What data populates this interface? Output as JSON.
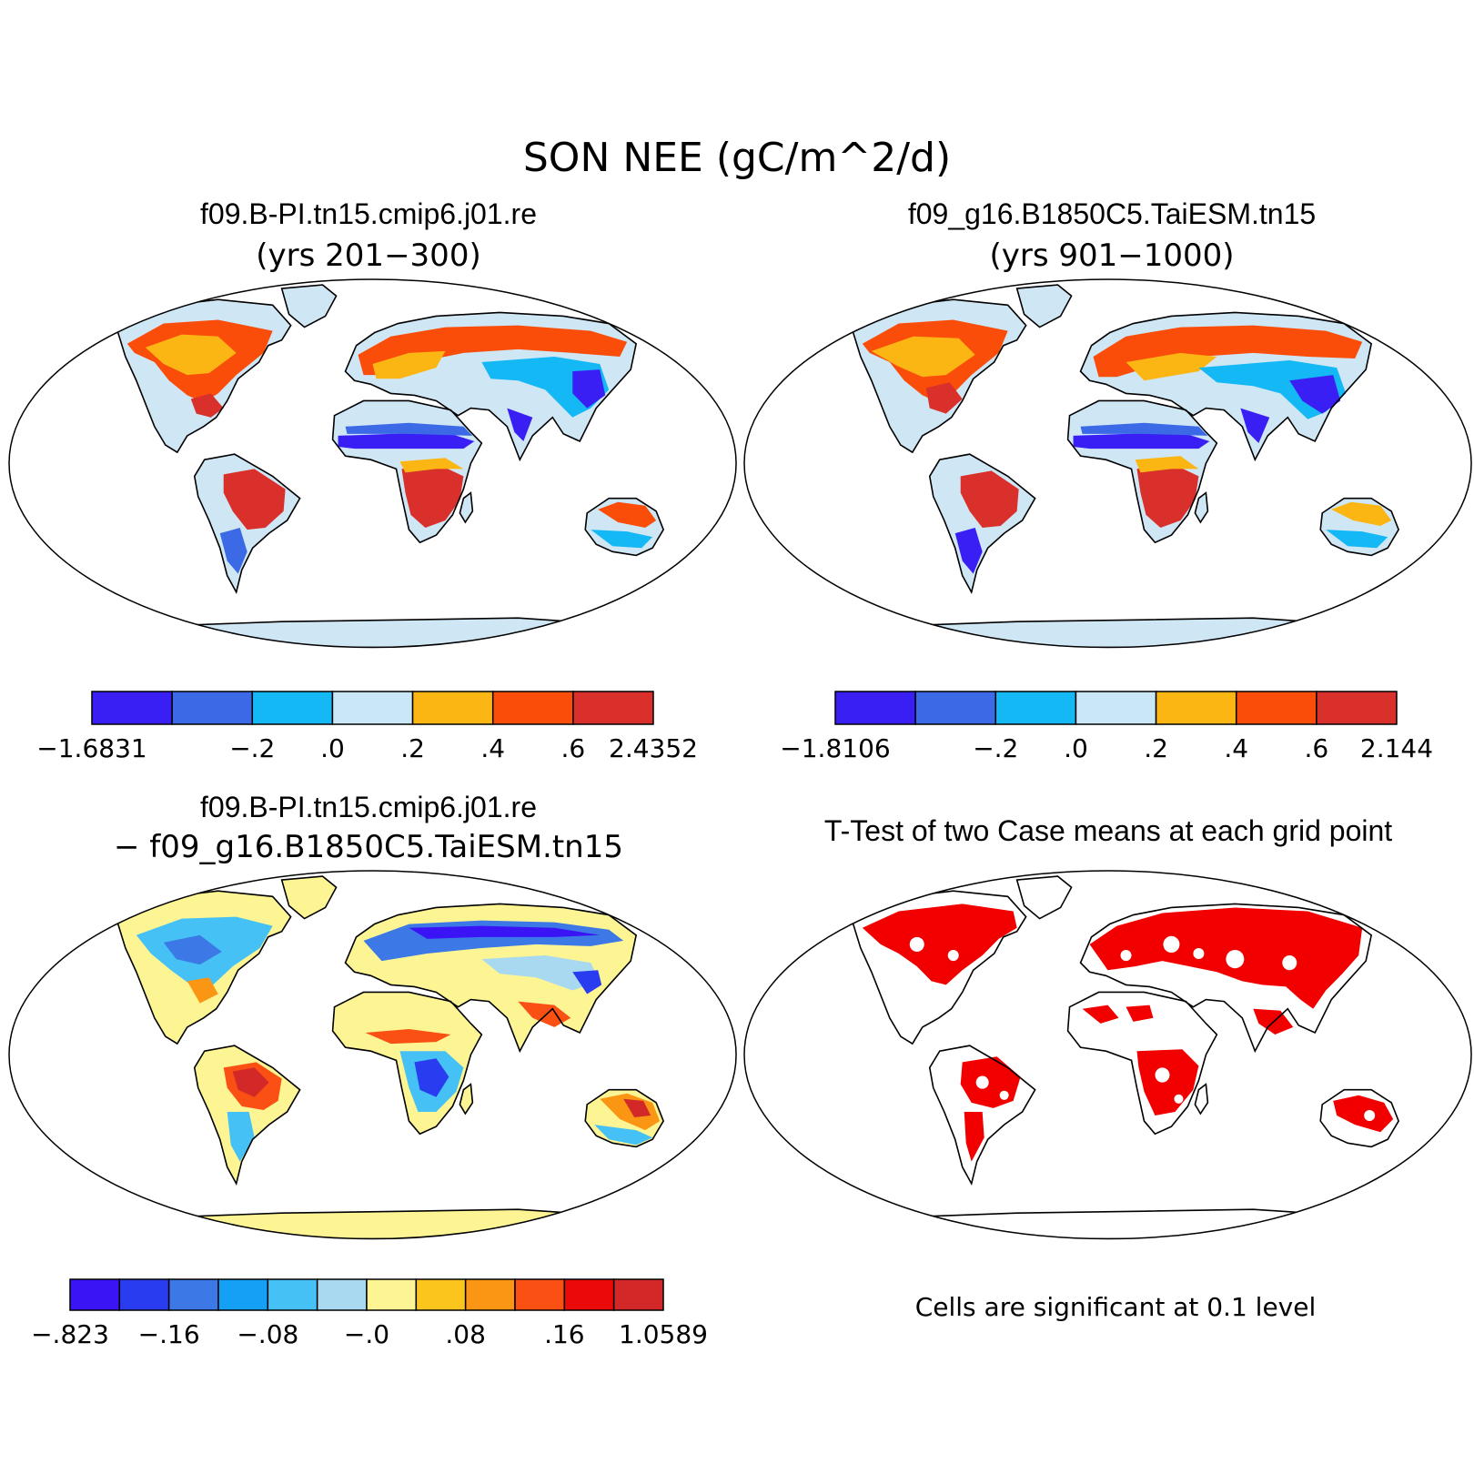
{
  "figure": {
    "title": "SON NEE (gC/m^2/d)"
  },
  "panels": [
    {
      "id": "case1",
      "title": "f09.B-PI.tn15.cmip6.j01.re",
      "subtitle": "(yrs 201−300)",
      "land_color": "#cfe6f5",
      "colorbar": {
        "colors": [
          "#3a1ff5",
          "#3c6ae6",
          "#14b8f5",
          "#c9e7f6",
          "#fcb614",
          "#fa4d0a",
          "#d9302b"
        ],
        "tick_labels": [
          "−1.6831",
          "−.2",
          ".0",
          ".2",
          ".4",
          ".6",
          "2.4352"
        ]
      }
    },
    {
      "id": "case2",
      "title": "f09_g16.B1850C5.TaiESM.tn15",
      "subtitle": "(yrs 901−1000)",
      "land_color": "#cfe6f5",
      "colorbar": {
        "colors": [
          "#3a1ff5",
          "#3c6ae6",
          "#14b8f5",
          "#c9e7f6",
          "#fcb614",
          "#fa4d0a",
          "#d9302b"
        ],
        "tick_labels": [
          "−1.8106",
          "−.2",
          ".0",
          ".2",
          ".4",
          ".6",
          "2.144"
        ]
      }
    },
    {
      "id": "difference",
      "title": "f09.B-PI.tn15.cmip6.j01.re",
      "subtitle": "− f09_g16.B1850C5.TaiESM.tn15",
      "land_color": "#fdf594",
      "colorbar": {
        "colors": [
          "#3a14f5",
          "#2a3cf0",
          "#3c78e6",
          "#14a0f5",
          "#46c1f5",
          "#a8d9f0",
          "#fdf594",
          "#fcc51e",
          "#fa9614",
          "#fa5014",
          "#eb0a0a",
          "#d22828"
        ],
        "tick_labels": [
          "−.823",
          "−.16",
          "−.08",
          "−.0",
          ".08",
          ".16",
          "1.0589"
        ]
      }
    },
    {
      "id": "ttest",
      "title": "T-Test of two Case means at each grid point",
      "land_color": "#ffffff",
      "signif_color": "#f20000",
      "note": "Cells are significant at 0.1 level"
    }
  ]
}
